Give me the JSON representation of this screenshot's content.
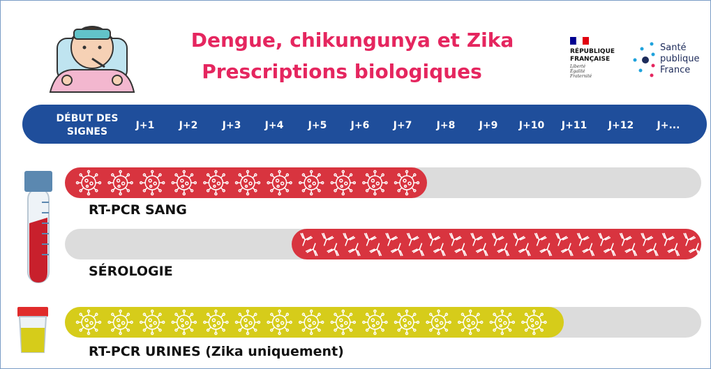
{
  "header": {
    "title_lines": [
      "Dengue, chikungunya et Zika",
      "Prescriptions biologiques"
    ],
    "republique": {
      "lines": [
        "RÉPUBLIQUE",
        "FRANÇAISE"
      ],
      "motto": [
        "Liberté",
        "Égalité",
        "Fraternité"
      ]
    },
    "sante_publique": [
      "Santé",
      "publique",
      "France"
    ]
  },
  "timeline": {
    "start": [
      "DÉBUT DES",
      "SIGNES"
    ],
    "days": [
      "J+1",
      "J+2",
      "J+3",
      "J+4",
      "J+5",
      "J+6",
      "J+7",
      "J+8",
      "J+9",
      "J+10",
      "J+11",
      "J+12",
      "J+..."
    ]
  },
  "tests": [
    {
      "label": "RT-PCR SANG"
    },
    {
      "label": "SÉROLOGIE"
    },
    {
      "label": "RT-PCR URINES (Zika uniquement)"
    }
  ]
}
